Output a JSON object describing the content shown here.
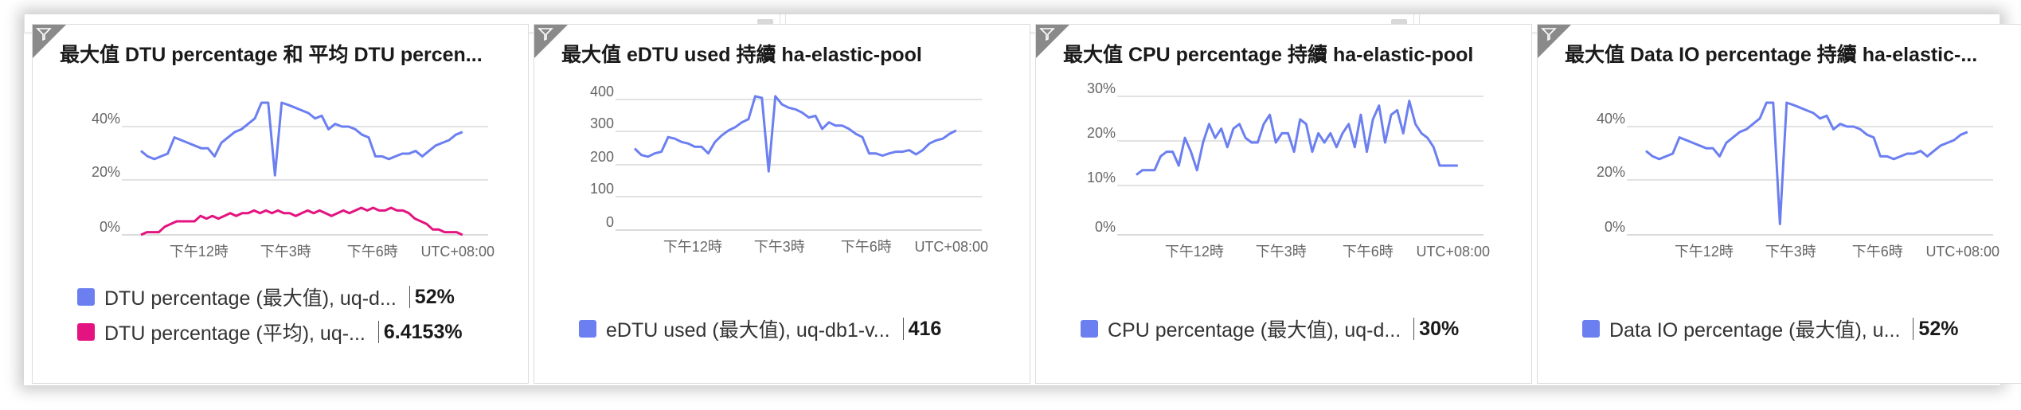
{
  "colors": {
    "series_max": "#6b7ff0",
    "series_avg": "#e3137f",
    "grid": "#d9d9d9",
    "text": "#1a1a1a"
  },
  "chart_data": [
    {
      "type": "line",
      "title": "最大值 DTU percentage 和 平均 DTU percen...",
      "yticks": [
        "40%",
        "20%",
        "0%"
      ],
      "ylim": [
        0,
        55
      ],
      "xticks": [
        {
          "label": "下午12時",
          "x": 16
        },
        {
          "label": "下午3時",
          "x": 34
        },
        {
          "label": "下午6時",
          "x": 52
        }
      ],
      "timezone": "UTC+08:00",
      "xlim": [
        0,
        76
      ],
      "series": [
        {
          "name": "DTU percentage (最大值), uq-d...",
          "value": "52%",
          "color": "#6b7ff0",
          "values": [
            31,
            29,
            28,
            29,
            30,
            36,
            35,
            34,
            33,
            32,
            32,
            29,
            34,
            36,
            38,
            39,
            41,
            43,
            51,
            50,
            22,
            51,
            48,
            47,
            46,
            45,
            43,
            44,
            39,
            41,
            40,
            40,
            39,
            37,
            36,
            29,
            29,
            28,
            29,
            30,
            30,
            31,
            29,
            31,
            33,
            34,
            35,
            37,
            38
          ]
        },
        {
          "name": "DTU percentage (平均), uq-...",
          "value": "6.4153%",
          "color": "#e3137f",
          "values": [
            0,
            1,
            1,
            1,
            3,
            4,
            5,
            5,
            5,
            5,
            7,
            6,
            7,
            6,
            7,
            8,
            7,
            8,
            8,
            9,
            8,
            9,
            8,
            9,
            8,
            8,
            7,
            8,
            9,
            8,
            9,
            8,
            7,
            8,
            9,
            8,
            9,
            10,
            9,
            10,
            9,
            9,
            10,
            9,
            9,
            8,
            6,
            5,
            4,
            2,
            2,
            1,
            1,
            1,
            0
          ]
        }
      ]
    },
    {
      "type": "line",
      "title": "最大值 eDTU used 持續 ha-elastic-pool",
      "yticks": [
        "400",
        "300",
        "200",
        "100",
        "0"
      ],
      "ylim": [
        0,
        440
      ],
      "xticks": [
        {
          "label": "下午12時",
          "x": 16
        },
        {
          "label": "下午3時",
          "x": 34
        },
        {
          "label": "下午6時",
          "x": 52
        }
      ],
      "timezone": "UTC+08:00",
      "xlim": [
        0,
        76
      ],
      "series": [
        {
          "name": "eDTU used (最大值), uq-db1-v...",
          "value": "416",
          "color": "#6b7ff0",
          "values": [
            250,
            230,
            225,
            235,
            240,
            285,
            280,
            270,
            265,
            255,
            255,
            235,
            270,
            290,
            305,
            315,
            330,
            340,
            410,
            405,
            180,
            410,
            385,
            375,
            370,
            360,
            345,
            350,
            310,
            330,
            320,
            320,
            310,
            295,
            285,
            235,
            235,
            228,
            235,
            240,
            240,
            245,
            232,
            245,
            265,
            275,
            280,
            295,
            305
          ]
        }
      ]
    },
    {
      "type": "line",
      "title": "最大值 CPU percentage 持續 ha-elastic-pool",
      "yticks": [
        "30%",
        "20%",
        "10%",
        "0%"
      ],
      "ylim": [
        0,
        33
      ],
      "xticks": [
        {
          "label": "下午12時",
          "x": 16
        },
        {
          "label": "下午3時",
          "x": 34
        },
        {
          "label": "下午6時",
          "x": 52
        }
      ],
      "timezone": "UTC+08:00",
      "xlim": [
        0,
        76
      ],
      "series": [
        {
          "name": "CPU percentage (最大值), uq-d...",
          "value": "30%",
          "color": "#6b7ff0",
          "values": [
            13,
            14,
            14,
            14,
            17,
            18,
            18,
            15,
            21,
            18,
            14,
            20,
            24,
            21,
            23,
            19,
            23,
            24,
            21,
            20,
            20,
            24,
            26,
            20,
            22,
            22,
            18,
            25,
            24,
            18,
            22,
            20,
            22,
            19,
            22,
            24,
            19,
            26,
            18,
            25,
            28,
            20,
            26,
            27,
            22,
            29,
            24,
            22,
            21,
            19,
            15,
            15,
            15,
            15
          ]
        }
      ]
    },
    {
      "type": "line",
      "title": "最大值 Data IO percentage 持續 ha-elastic-...",
      "yticks": [
        "40%",
        "20%",
        "0%"
      ],
      "ylim": [
        0,
        55
      ],
      "xticks": [
        {
          "label": "下午12時",
          "x": 16
        },
        {
          "label": "下午3時",
          "x": 34
        },
        {
          "label": "下午6時",
          "x": 52
        }
      ],
      "timezone": "UTC+08:00",
      "xlim": [
        0,
        76
      ],
      "series": [
        {
          "name": "Data IO percentage (最大值), u...",
          "value": "52%",
          "color": "#6b7ff0",
          "values": [
            31,
            29,
            28,
            29,
            30,
            36,
            35,
            34,
            33,
            32,
            32,
            29,
            34,
            36,
            38,
            39,
            41,
            43,
            51,
            50,
            4,
            51,
            48,
            47,
            46,
            45,
            43,
            44,
            39,
            41,
            40,
            40,
            39,
            37,
            36,
            29,
            29,
            28,
            29,
            30,
            30,
            31,
            29,
            31,
            33,
            34,
            35,
            37,
            38
          ]
        }
      ]
    }
  ]
}
